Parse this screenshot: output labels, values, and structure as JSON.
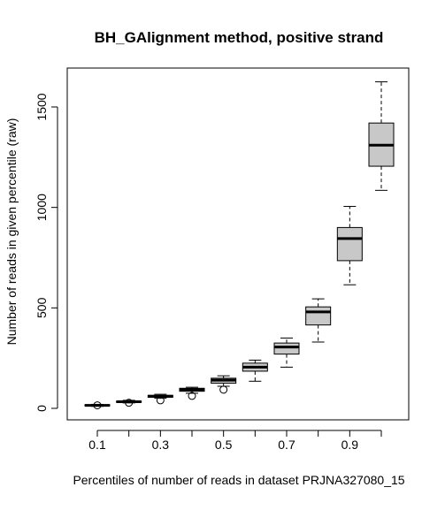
{
  "chart_data": {
    "type": "boxplot",
    "title": "BH_GAlignment method, positive strand",
    "xlabel": "Percentiles of number of reads in dataset PRJNA327080_15",
    "ylabel": "Number of reads in given percentile (raw)",
    "categories": [
      "0.1",
      "0.2",
      "0.3",
      "0.4",
      "0.5",
      "0.6",
      "0.7",
      "0.8",
      "0.9",
      "1.0"
    ],
    "x_tick_labels": [
      "0.1",
      "0.3",
      "0.5",
      "0.7",
      "0.9"
    ],
    "y_ticks": [
      0,
      500,
      1000,
      1500
    ],
    "ylim": [
      -50,
      1700
    ],
    "box_fill": "#c8c8c8",
    "series": [
      {
        "q1": 12,
        "median": 15,
        "q3": 18,
        "whisker_low": 10,
        "whisker_high": 20,
        "outliers": [
          15
        ]
      },
      {
        "q1": 30,
        "median": 33,
        "q3": 36,
        "whisker_low": 27,
        "whisker_high": 40,
        "outliers": [
          28
        ]
      },
      {
        "q1": 55,
        "median": 60,
        "q3": 65,
        "whisker_low": 50,
        "whisker_high": 70,
        "outliers": [
          40
        ]
      },
      {
        "q1": 85,
        "median": 93,
        "q3": 100,
        "whisker_low": 75,
        "whisker_high": 105,
        "outliers": [
          62
        ]
      },
      {
        "q1": 125,
        "median": 140,
        "q3": 150,
        "whisker_low": 110,
        "whisker_high": 162,
        "outliers": [
          93
        ]
      },
      {
        "q1": 185,
        "median": 205,
        "q3": 225,
        "whisker_low": 135,
        "whisker_high": 240,
        "outliers": []
      },
      {
        "q1": 270,
        "median": 305,
        "q3": 325,
        "whisker_low": 205,
        "whisker_high": 350,
        "outliers": []
      },
      {
        "q1": 415,
        "median": 480,
        "q3": 505,
        "whisker_low": 330,
        "whisker_high": 545,
        "outliers": []
      },
      {
        "q1": 735,
        "median": 845,
        "q3": 900,
        "whisker_low": 615,
        "whisker_high": 1005,
        "outliers": []
      },
      {
        "q1": 1205,
        "median": 1310,
        "q3": 1420,
        "whisker_low": 1085,
        "whisker_high": 1625,
        "outliers": []
      }
    ]
  }
}
